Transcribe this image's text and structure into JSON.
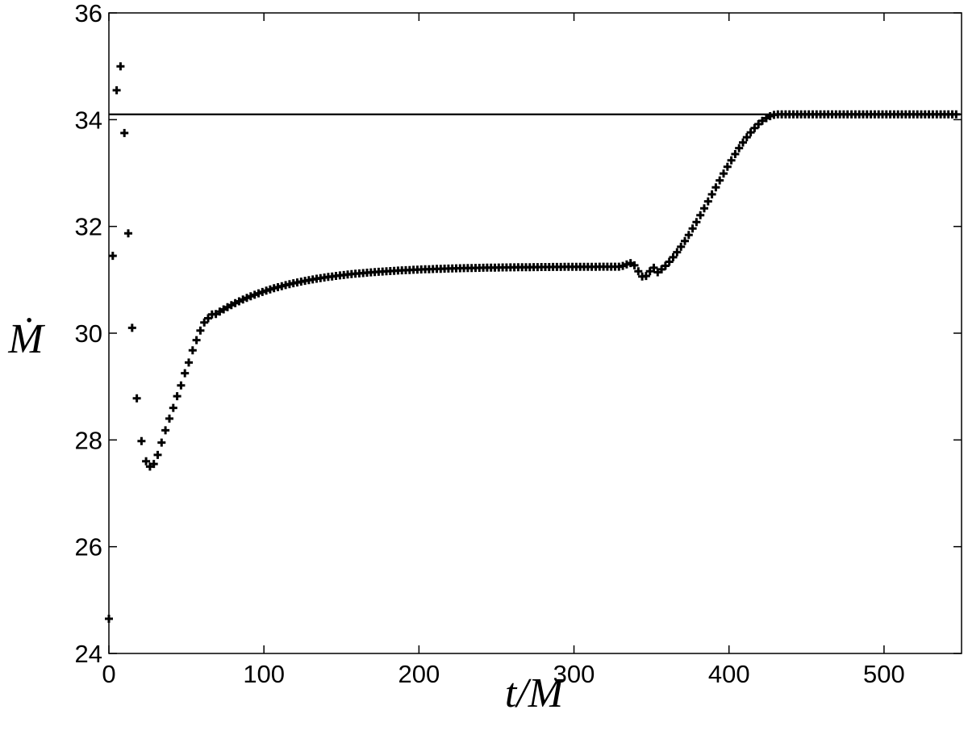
{
  "chart_data": {
    "type": "scatter",
    "xlabel": "t/M",
    "ylabel": "Ṁ",
    "xlim": [
      0,
      550
    ],
    "ylim": [
      24,
      36
    ],
    "xticks": [
      "0",
      "100",
      "200",
      "300",
      "400",
      "500"
    ],
    "yticks": [
      "24",
      "26",
      "28",
      "30",
      "32",
      "34",
      "36"
    ],
    "marker": "plus",
    "grid": false,
    "legend": "none",
    "reference_line": {
      "y": 34.1
    },
    "series": [
      {
        "points": [
          [
            0,
            24.65
          ],
          [
            2.5,
            31.45
          ],
          [
            5,
            34.55
          ],
          [
            7.5,
            35.0
          ],
          [
            10,
            33.75
          ],
          [
            12.5,
            31.87
          ],
          [
            15,
            30.1
          ],
          [
            18,
            28.78
          ],
          [
            21,
            27.98
          ],
          [
            24,
            27.6
          ],
          [
            26.5,
            27.5
          ],
          [
            29,
            27.55
          ],
          [
            31.5,
            27.72
          ],
          [
            34,
            27.95
          ],
          [
            36.5,
            28.18
          ],
          [
            39,
            28.4
          ],
          [
            41.5,
            28.6
          ],
          [
            44,
            28.82
          ],
          [
            46.5,
            29.02
          ],
          [
            49,
            29.25
          ],
          [
            51.5,
            29.45
          ],
          [
            54,
            29.68
          ],
          [
            56.5,
            29.87
          ],
          [
            59,
            30.05
          ],
          [
            61.5,
            30.2
          ],
          [
            64,
            30.28
          ],
          [
            66.5,
            30.35
          ]
        ]
      }
    ]
  }
}
